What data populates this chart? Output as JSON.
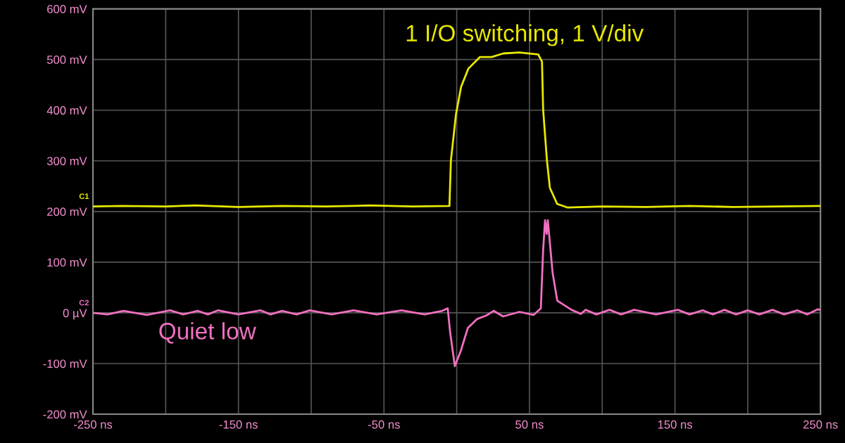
{
  "chart_data": {
    "type": "line",
    "xlim": [
      -250,
      250
    ],
    "xticks": [
      {
        "value": -250,
        "label": "-250 ns"
      },
      {
        "value": -200,
        "label": null
      },
      {
        "value": -150,
        "label": "-150 ns"
      },
      {
        "value": -100,
        "label": null
      },
      {
        "value": -50,
        "label": "-50 ns"
      },
      {
        "value": 0,
        "label": null
      },
      {
        "value": 50,
        "label": "50 ns"
      },
      {
        "value": 100,
        "label": null
      },
      {
        "value": 150,
        "label": "150 ns"
      },
      {
        "value": 200,
        "label": null
      },
      {
        "value": 250,
        "label": "250 ns"
      }
    ],
    "ylim": [
      -200,
      600
    ],
    "yticks": [
      {
        "value": -200,
        "label": "-200 mV"
      },
      {
        "value": -100,
        "label": "-100 mV"
      },
      {
        "value": 0,
        "label": "0 µV"
      },
      {
        "value": 100,
        "label": "100 mV"
      },
      {
        "value": 200,
        "label": "200 mV"
      },
      {
        "value": 300,
        "label": "300 mV"
      },
      {
        "value": 400,
        "label": "400 mV"
      },
      {
        "value": 500,
        "label": "500 mV"
      },
      {
        "value": 600,
        "label": "600 mV"
      }
    ],
    "grid": true,
    "series": [
      {
        "name": "C1",
        "color": "#e8e800",
        "x": [
          -250,
          -230,
          -200,
          -180,
          -150,
          -120,
          -90,
          -60,
          -30,
          -5,
          -4,
          -0.5,
          3,
          8,
          16,
          24,
          32,
          43,
          56,
          58.6,
          59.4,
          62,
          64,
          69,
          76,
          100,
          130,
          160,
          190,
          220,
          250
        ],
        "values": [
          210,
          211,
          210,
          212,
          209,
          211,
          210,
          212,
          210,
          211,
          301,
          392,
          446,
          482,
          505,
          505,
          512,
          514,
          510,
          496,
          401,
          301,
          247,
          215,
          208,
          210,
          209,
          211,
          209,
          210,
          211
        ]
      },
      {
        "name": "C2",
        "color": "#f070c0",
        "x": [
          -250,
          -240,
          -229,
          -213,
          -197,
          -188,
          -178,
          -171,
          -164,
          -150,
          -135,
          -128,
          -120,
          -110,
          -101,
          -86,
          -71,
          -55,
          -38,
          -22,
          -10,
          -6.2,
          -4.5,
          -1.3,
          2.8,
          7.6,
          14.1,
          20.5,
          25.4,
          31.9,
          43.2,
          52.9,
          57.8,
          59.4,
          60.7,
          61.8,
          62.6,
          65.9,
          69.1,
          78.9,
          85.3,
          88.6,
          96,
          105,
          113,
          122,
          137,
          152,
          160,
          169,
          176,
          184,
          192,
          200,
          208,
          217,
          225,
          234,
          241,
          248,
          250
        ],
        "values": [
          0,
          -3,
          4,
          -4,
          5,
          -3,
          4,
          -3,
          5,
          -3,
          5,
          -3,
          4,
          -3,
          5,
          -3,
          5,
          -3,
          5,
          -3,
          4,
          9,
          -39,
          -105,
          -75,
          -30,
          -12,
          -5,
          4,
          -7,
          2,
          -4,
          9,
          124,
          183,
          156,
          183,
          79,
          24,
          6,
          -2,
          6,
          -3,
          6,
          -3,
          6,
          -3,
          6,
          -3,
          5,
          -3,
          6,
          -3,
          5,
          -3,
          6,
          -3,
          5,
          -3,
          7,
          6
        ]
      }
    ],
    "annotations": [
      "1 I/O switching, 1 V/div",
      "Quiet low"
    ]
  }
}
